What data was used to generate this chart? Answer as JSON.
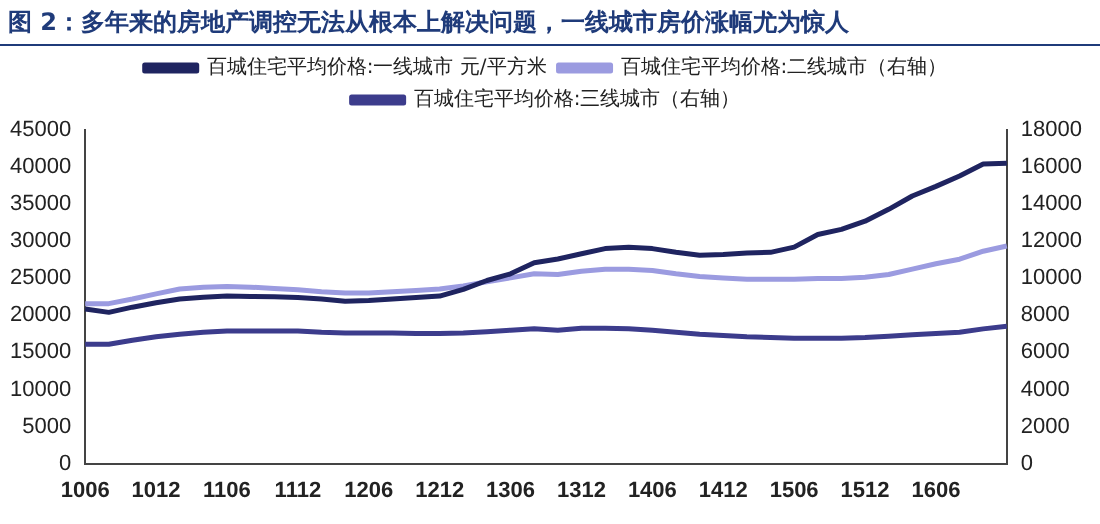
{
  "chart_data": {
    "type": "line",
    "title": "图 2：多年来的房地产调控无法从根本上解决问题，一线城市房价涨幅尤为惊人",
    "categories": [
      "1006",
      null,
      null,
      "1012",
      null,
      null,
      "1106",
      null,
      null,
      "1112",
      null,
      null,
      "1206",
      null,
      null,
      "1212",
      null,
      null,
      "1306",
      null,
      null,
      "1312",
      null,
      null,
      "1406",
      null,
      null,
      "1412",
      null,
      null,
      "1506",
      null,
      null,
      "1512",
      null,
      null,
      "1606",
      null,
      null,
      null
    ],
    "series": [
      {
        "name": "百城住宅平均价格:一线城市 元/平方米",
        "color": "#1f2460",
        "values": [
          20850,
          20400,
          21100,
          21700,
          22200,
          22450,
          22600,
          22550,
          22500,
          22400,
          22200,
          21900,
          22000,
          22200,
          22400,
          22600,
          23500,
          24700,
          25600,
          27100,
          27600,
          28300,
          29000,
          29200,
          29000,
          28500,
          28100,
          28200,
          28400,
          28500,
          29200,
          30900,
          31600,
          32700,
          34300,
          36100,
          37400,
          38800,
          40400,
          40500
        ]
      },
      {
        "name": "百城住宅平均价格:二线城市（右轴）",
        "color": "#9b9be0",
        "axis": "y2",
        "values": [
          8630,
          8630,
          8880,
          9160,
          9420,
          9520,
          9560,
          9520,
          9450,
          9380,
          9270,
          9200,
          9200,
          9270,
          9340,
          9420,
          9590,
          9810,
          10020,
          10240,
          10200,
          10380,
          10490,
          10490,
          10420,
          10240,
          10100,
          10020,
          9950,
          9950,
          9950,
          9990,
          9990,
          10060,
          10200,
          10490,
          10780,
          11030,
          11460,
          11740
        ]
      },
      {
        "name": "百城住宅平均价格:三线城市（右轴）",
        "color": "#3c3c8c",
        "axis": "y2",
        "values": [
          6440,
          6440,
          6660,
          6840,
          6980,
          7090,
          7160,
          7160,
          7160,
          7160,
          7090,
          7050,
          7050,
          7050,
          7020,
          7020,
          7050,
          7120,
          7200,
          7270,
          7200,
          7300,
          7300,
          7270,
          7200,
          7090,
          6980,
          6910,
          6840,
          6800,
          6770,
          6770,
          6770,
          6800,
          6870,
          6950,
          7020,
          7090,
          7270,
          7410
        ]
      }
    ],
    "ylim": [
      0,
      45000
    ],
    "yticks": [
      0,
      5000,
      10000,
      15000,
      20000,
      25000,
      30000,
      35000,
      40000,
      45000
    ],
    "y2lim": [
      0,
      18000
    ],
    "y2ticks": [
      0,
      2000,
      4000,
      6000,
      8000,
      10000,
      12000,
      14000,
      16000,
      18000
    ],
    "grid": false,
    "legend": "top",
    "marker": "none",
    "line_style": "solid"
  }
}
